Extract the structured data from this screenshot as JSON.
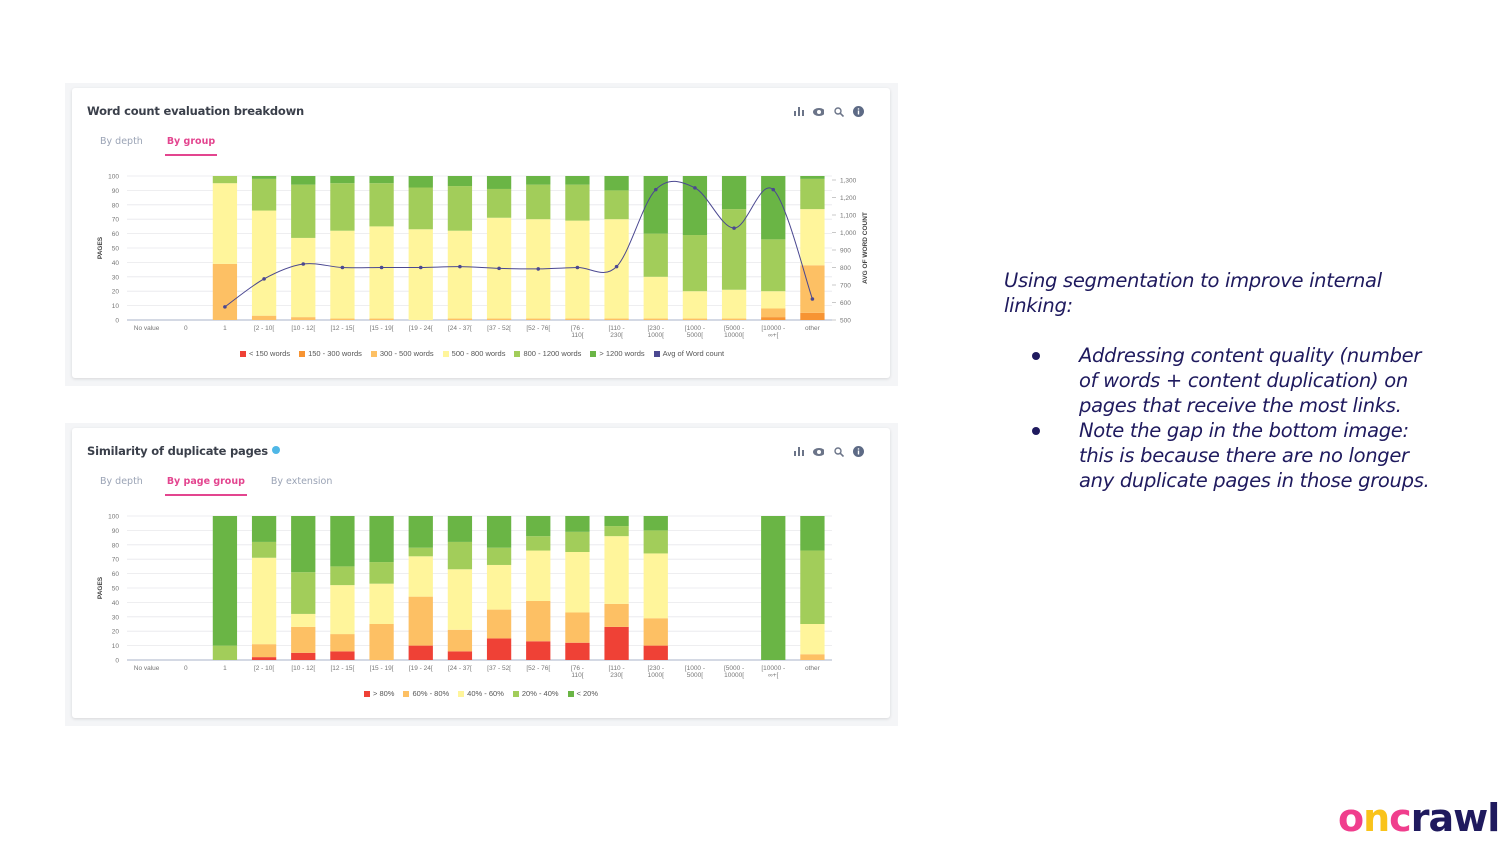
{
  "slide": {
    "heading": "Using segmentation to improve internal linking:",
    "bullets": [
      "Addressing content quality (number of words + content duplication) on pages that receive the most links.",
      "Note the gap in the bottom image: this is because there are no longer any duplicate pages in those groups."
    ],
    "logo": {
      "letters": [
        "o",
        "n",
        "c",
        "rawl"
      ],
      "colors": [
        "#f03e8d",
        "#f9c31a",
        "#f03e8d",
        "#1f1a5e"
      ]
    }
  },
  "toolbar_icons": [
    "bar-chart-icon",
    "eye-icon",
    "zoom-icon",
    "info-icon"
  ],
  "chart_data": [
    {
      "type": "bar",
      "stacked": true,
      "title": "Word count evaluation breakdown",
      "tabs": [
        {
          "label": "By depth",
          "active": false
        },
        {
          "label": "By group",
          "active": true
        }
      ],
      "ylabel": "PAGES",
      "y2label": "AVG OF WORD COUNT",
      "ylim": [
        0,
        100
      ],
      "y2lim": [
        500,
        1300
      ],
      "yticks": [
        "0",
        "10",
        "20",
        "30",
        "40",
        "50",
        "60",
        "70",
        "80",
        "90",
        "100"
      ],
      "y2ticks": [
        "500",
        "600",
        "700",
        "800",
        "900",
        "1,000",
        "1,100",
        "1,200",
        "1,300"
      ],
      "grid": true,
      "legend_position": "bottom",
      "categories": [
        "No value",
        "0",
        "1",
        "[2 - 10[",
        "[10 - 12[",
        "[12 - 15[",
        "[15 - 19[",
        "[19 - 24[",
        "[24 - 37[",
        "[37 - 52[",
        "[52 - 76[",
        "[76 - 110[",
        "[110 - 230[",
        "[230 - 1000[",
        "[1000 - 5000[",
        "[5000 - 10000[",
        "[10000 - ∞+[",
        "other"
      ],
      "series": [
        {
          "name": "< 150 words",
          "color": "#ef4136",
          "values": [
            0,
            0,
            0,
            0,
            0,
            0,
            0,
            0,
            0,
            0,
            0,
            0,
            0,
            0,
            0,
            0,
            0,
            0
          ]
        },
        {
          "name": "150 - 300 words",
          "color": "#f79433",
          "values": [
            0,
            0,
            0,
            0,
            0,
            0,
            0,
            0,
            0,
            0,
            0,
            0,
            0,
            0,
            0,
            0,
            2,
            5
          ]
        },
        {
          "name": "300 - 500 words",
          "color": "#fdc064",
          "values": [
            0,
            0,
            39,
            3,
            2,
            1,
            1,
            0,
            1,
            1,
            1,
            1,
            1,
            1,
            1,
            1,
            6,
            33
          ]
        },
        {
          "name": "500 - 800 words",
          "color": "#fff59b",
          "values": [
            0,
            0,
            56,
            73,
            55,
            61,
            64,
            63,
            61,
            70,
            69,
            68,
            69,
            29,
            19,
            20,
            12,
            39
          ]
        },
        {
          "name": "800 - 1200 words",
          "color": "#a2cd5a",
          "values": [
            0,
            0,
            5,
            22,
            37,
            33,
            30,
            29,
            31,
            20,
            24,
            25,
            20,
            30,
            39,
            56,
            36,
            21
          ]
        },
        {
          "name": "> 1200 words",
          "color": "#6ab545",
          "values": [
            0,
            0,
            0,
            2,
            6,
            5,
            5,
            8,
            7,
            9,
            6,
            6,
            10,
            40,
            41,
            23,
            44,
            2
          ]
        }
      ],
      "line_series": {
        "name": "Avg of Word count",
        "color": "#4b4891",
        "axis": "right",
        "values": [
          null,
          null,
          575,
          735,
          820,
          800,
          800,
          800,
          805,
          795,
          792,
          800,
          805,
          1245,
          1255,
          1025,
          1245,
          620
        ]
      }
    },
    {
      "type": "bar",
      "stacked": true,
      "title": "Similarity of duplicate pages",
      "tabs": [
        {
          "label": "By depth",
          "active": false
        },
        {
          "label": "By page group",
          "active": true
        },
        {
          "label": "By extension",
          "active": false
        }
      ],
      "ylabel": "PAGES",
      "ylim": [
        0,
        100
      ],
      "yticks": [
        "0",
        "10",
        "20",
        "30",
        "40",
        "50",
        "60",
        "70",
        "80",
        "90",
        "100"
      ],
      "grid": true,
      "legend_position": "bottom",
      "categories": [
        "No value",
        "0",
        "1",
        "[2 - 10[",
        "[10 - 12[",
        "[12 - 15[",
        "[15 - 19[",
        "[19 - 24[",
        "[24 - 37[",
        "[37 - 52[",
        "[52 - 76[",
        "[76 - 110[",
        "[110 - 230[",
        "[230 - 1000[",
        "[1000 - 5000[",
        "[5000 - 10000[",
        "[10000 - ∞+[",
        "other"
      ],
      "series": [
        {
          "name": "> 80%",
          "color": "#ef4136",
          "values": [
            0,
            0,
            0,
            2,
            5,
            6,
            0,
            10,
            6,
            15,
            13,
            12,
            23,
            10,
            0,
            0,
            0,
            0
          ]
        },
        {
          "name": "60% - 80%",
          "color": "#fdc064",
          "values": [
            0,
            0,
            0,
            9,
            18,
            12,
            25,
            34,
            15,
            20,
            28,
            21,
            16,
            19,
            0,
            0,
            0,
            4
          ]
        },
        {
          "name": "40% - 60%",
          "color": "#fff59b",
          "values": [
            0,
            0,
            0,
            60,
            9,
            34,
            28,
            28,
            42,
            31,
            35,
            42,
            47,
            45,
            0,
            0,
            0,
            21
          ]
        },
        {
          "name": "20% - 40%",
          "color": "#a2cd5a",
          "values": [
            0,
            0,
            10,
            11,
            29,
            13,
            15,
            6,
            19,
            12,
            10,
            14,
            7,
            16,
            0,
            0,
            0,
            51
          ]
        },
        {
          "name": "< 20%",
          "color": "#6ab545",
          "values": [
            0,
            0,
            90,
            18,
            39,
            35,
            32,
            22,
            18,
            22,
            14,
            11,
            7,
            10,
            0,
            0,
            100,
            24
          ]
        }
      ]
    }
  ]
}
